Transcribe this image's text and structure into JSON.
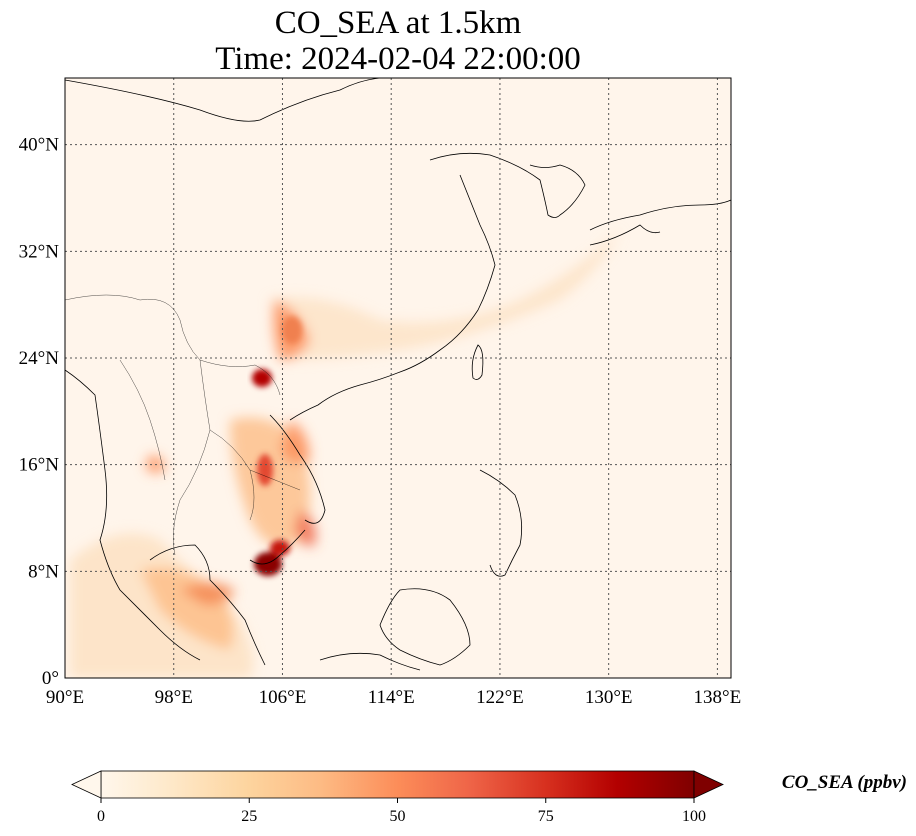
{
  "title_line1": "CO_SEA at 1.5km",
  "title_line2": "Time: 2024-02-04 22:00:00",
  "map": {
    "lon_min": 90,
    "lon_max": 139,
    "lat_min": 0,
    "lat_max": 45,
    "lon_ticks": [
      90,
      98,
      106,
      114,
      122,
      130,
      138
    ],
    "lat_ticks": [
      0,
      8,
      16,
      24,
      32,
      40
    ],
    "lon_tick_labels": [
      "90°E",
      "98°E",
      "106°E",
      "114°E",
      "122°E",
      "130°E",
      "138°E"
    ],
    "lat_tick_labels": [
      "0°",
      "8°N",
      "16°N",
      "24°N",
      "32°N",
      "40°N"
    ],
    "gridlines": "dotted",
    "background_color": "#fff5eb"
  },
  "colorbar": {
    "label": "CO_SEA (ppbv)",
    "min": 0,
    "max": 100,
    "ticks": [
      "0",
      "25",
      "50",
      "75",
      "100"
    ],
    "extend": "both",
    "colormap": "OrRd",
    "colors": [
      "#fff7ec",
      "#fee8c8",
      "#fdd49e",
      "#fdbb84",
      "#fc8d59",
      "#ef6548",
      "#d7301f",
      "#b30000",
      "#7f0000"
    ]
  }
}
